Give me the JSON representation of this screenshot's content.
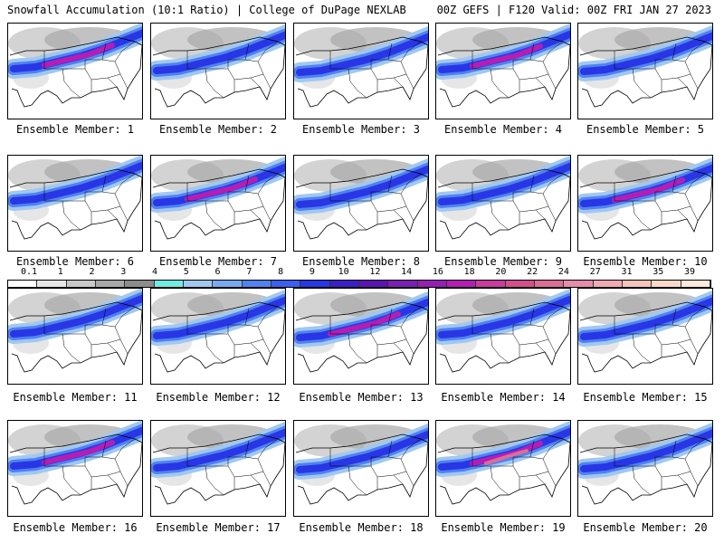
{
  "header": {
    "left": "Snowfall Accumulation (10:1 Ratio) | College of DuPage NEXLAB",
    "right": "00Z GEFS | F120 Valid: 00Z FRI JAN 27 2023"
  },
  "panels": [
    {
      "label": "Ensemble Member: 1"
    },
    {
      "label": "Ensemble Member: 2"
    },
    {
      "label": "Ensemble Member: 3"
    },
    {
      "label": "Ensemble Member: 4"
    },
    {
      "label": "Ensemble Member: 5"
    },
    {
      "label": "Ensemble Member: 6"
    },
    {
      "label": "Ensemble Member: 7"
    },
    {
      "label": "Ensemble Member: 8"
    },
    {
      "label": "Ensemble Member: 9"
    },
    {
      "label": "Ensemble Member: 10"
    },
    {
      "label": "Ensemble Member: 11"
    },
    {
      "label": "Ensemble Member: 12"
    },
    {
      "label": "Ensemble Member: 13"
    },
    {
      "label": "Ensemble Member: 14"
    },
    {
      "label": "Ensemble Member: 15"
    },
    {
      "label": "Ensemble Member: 16"
    },
    {
      "label": "Ensemble Member: 17"
    },
    {
      "label": "Ensemble Member: 18"
    },
    {
      "label": "Ensemble Member: 19"
    },
    {
      "label": "Ensemble Member: 20"
    }
  ],
  "colorbar": {
    "labels": [
      "0.1",
      "1",
      "2",
      "3",
      "4",
      "5",
      "6",
      "7",
      "8",
      "9",
      "10",
      "12",
      "14",
      "16",
      "18",
      "20",
      "22",
      "24",
      "27",
      "31",
      "35",
      "39"
    ],
    "colors": [
      "#ffffff",
      "#e6e6e6",
      "#c8c8c8",
      "#a8a8a8",
      "#8c8c8c",
      "#70ece0",
      "#a0c8f0",
      "#78aaf0",
      "#5082f0",
      "#3c5ff0",
      "#2836e6",
      "#3c1ec8",
      "#5a14b4",
      "#7a1eb4",
      "#961eb4",
      "#b41eb4",
      "#c83ca0",
      "#d2508c",
      "#dc6e96",
      "#e68caa",
      "#f0aab4",
      "#f5c3b9",
      "#f8d8c8",
      "#fce8dc"
    ]
  }
}
